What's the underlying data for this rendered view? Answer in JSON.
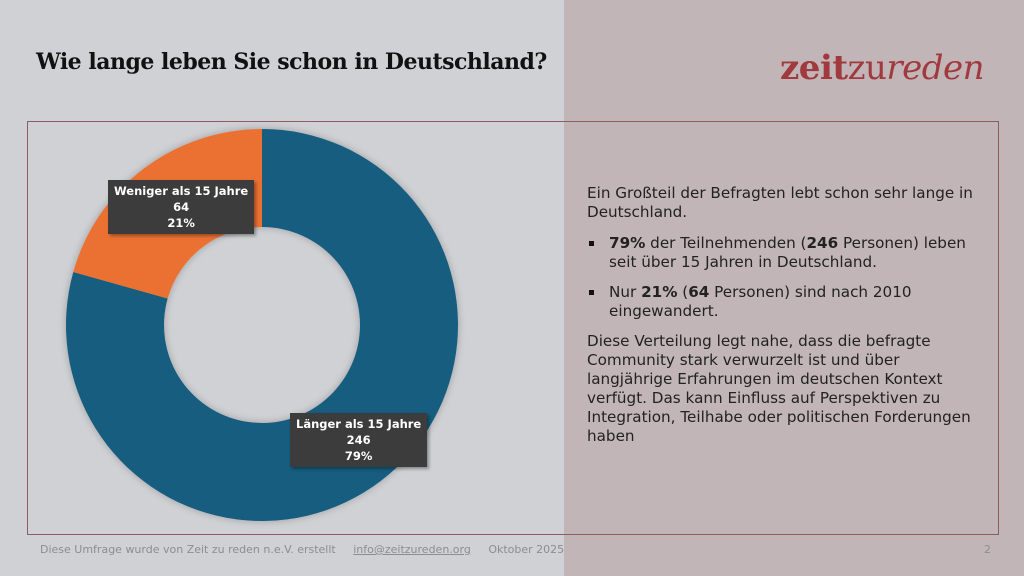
{
  "slide": {
    "title": "Wie lange leben Sie schon in Deutschland?",
    "logo": {
      "part1": "zeit",
      "part2": "zu",
      "part3": "reden"
    },
    "colors": {
      "accent": "#a03a3e",
      "blue": "#175d80",
      "orange": "#ea7130",
      "label_bg": "#3c3c3d"
    },
    "text": {
      "intro": "Ein Großteil der Befragten lebt schon sehr lange in Deutschland.",
      "bullets": [
        {
          "b1": "79%",
          "t1": " der Teilnehmenden (",
          "b2": "246",
          "t2": " Personen) leben seit über 15 Jahren in Deutschland."
        },
        {
          "t0": "Nur ",
          "b1": "21%",
          "t1": " (",
          "b2": "64",
          "t2": " Personen) sind nach 2010 eingewandert."
        }
      ],
      "conclusion": "Diese Verteilung legt nahe, dass die befragte Community stark verwurzelt ist und über langjährige Erfahrungen im deutschen Kontext verfügt. Das kann Einfluss auf Perspektiven zu Integration, Teilhabe oder politischen Forderungen haben"
    },
    "footer": {
      "credit": "Diese Umfrage wurde von Zeit zu reden n.e.V. erstellt",
      "email": "info@zeitzureden.org",
      "date": "Oktober 2025",
      "page": "2"
    }
  },
  "chart_data": {
    "type": "pie",
    "variant": "donut",
    "title": "Wie lange leben Sie schon in Deutschland?",
    "categories": [
      "Länger als 15 Jahre",
      "Weniger als 15 Jahre"
    ],
    "values": [
      246,
      64
    ],
    "percentages": [
      "79%",
      "21%"
    ],
    "colors": [
      "#175d80",
      "#ea7130"
    ],
    "start": "top, clockwise",
    "legend": "none"
  }
}
